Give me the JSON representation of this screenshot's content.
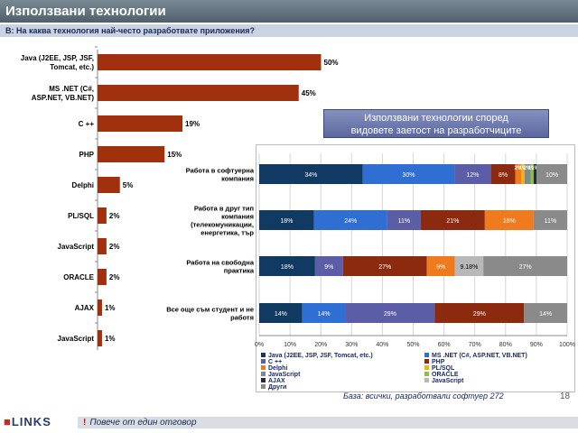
{
  "header": {
    "title": "Използвани технологии",
    "question": "В: На каква технология най-често разработвате приложения?"
  },
  "inset": {
    "title_line1": "Използвани технологии според",
    "title_line2": "видовете заетост на разработчиците"
  },
  "footer": {
    "base_note": "База: всички, разработвали софтуер 272",
    "note": "Повече от един отговор",
    "exclamation": "!",
    "page_number": "18",
    "logo": "LINKS"
  },
  "chart_data": [
    {
      "type": "bar",
      "orientation": "horizontal",
      "bar_color": "#a0300e",
      "categories": [
        [
          "Java (J2EE, JSP, JSF,",
          "Tomcat, etc.)"
        ],
        [
          "MS .NET (C#,",
          "ASP.NET, VB.NET)"
        ],
        [
          "C ++"
        ],
        [
          "PHP"
        ],
        [
          "Delphi"
        ],
        [
          "PL/SQL"
        ],
        [
          "JavaScript"
        ],
        [
          "ORACLE"
        ],
        [
          "AJAX"
        ],
        [
          "JavaScript"
        ]
      ],
      "values": [
        50,
        45,
        19,
        15,
        5,
        2,
        2,
        2,
        1,
        1
      ],
      "value_labels": [
        "50%",
        "45%",
        "19%",
        "15%",
        "5%",
        "2%",
        "2%",
        "2%",
        "1%",
        "1%"
      ]
    },
    {
      "type": "bar",
      "orientation": "horizontal",
      "stacked": true,
      "percent_stacked": true,
      "xlim": [
        0,
        100
      ],
      "xticks": [
        "0%",
        "10%",
        "20%",
        "30%",
        "40%",
        "50%",
        "60%",
        "70%",
        "80%",
        "90%",
        "100%"
      ],
      "categories": [
        [
          "Работа в софтуерна",
          "компания"
        ],
        [
          "Работа в друг тип",
          "компания",
          "(телекомуникации,",
          "енергетика, тър"
        ],
        [
          "Работа на свободна",
          "практика"
        ],
        [
          "Все още съм студент и не",
          "работя"
        ]
      ],
      "series": [
        {
          "name": "Java (J2EE, JSP, JSF, Tomcat, etc.)",
          "color": "#113a63",
          "values": [
            34,
            18,
            18,
            14
          ],
          "labels": [
            "34%",
            "18%",
            "18%",
            "14%"
          ]
        },
        {
          "name": "MS .NET (C#, ASP.NET, VB.NET)",
          "color": "#2f6fd4",
          "values": [
            30,
            24,
            0,
            14
          ],
          "labels": [
            "30%",
            "24%",
            "",
            "14%"
          ]
        },
        {
          "name": "C ++",
          "color": "#5b5ea6",
          "values": [
            12,
            11,
            9,
            29
          ],
          "labels": [
            "12%",
            "11%",
            "9%",
            "29%"
          ]
        },
        {
          "name": "PHP",
          "color": "#8b2a0e",
          "values": [
            8,
            21,
            27,
            29
          ],
          "labels": [
            "8%",
            "21%",
            "27%",
            "29%"
          ]
        },
        {
          "name": "Delphi",
          "color": "#f07a1e",
          "values": [
            2,
            16,
            9,
            0
          ],
          "labels": [
            "2%",
            "16%",
            "9%",
            ""
          ]
        },
        {
          "name": "PL/SQL",
          "color": "#f2b40a",
          "values": [
            1,
            0,
            0,
            0
          ],
          "labels": [
            "1%",
            "",
            "",
            ""
          ]
        },
        {
          "name": "JavaScript",
          "color": "#7b8a8f",
          "values": [
            2,
            0,
            0,
            0
          ],
          "labels": [
            "2%",
            "",
            "",
            ""
          ]
        },
        {
          "name": "ORACLE",
          "color": "#8fbf3f",
          "values": [
            1,
            0,
            0,
            0
          ],
          "labels": [
            "1%",
            "",
            "",
            ""
          ]
        },
        {
          "name": "AJAX",
          "color": "#1e2e3e",
          "values": [
            1,
            0,
            0,
            0
          ],
          "labels": [
            "1%",
            "",
            "",
            ""
          ]
        },
        {
          "name": "JavaScript",
          "color": "#b8b8b8",
          "values": [
            0,
            0,
            9.18,
            0
          ],
          "labels": [
            "",
            "",
            "9.18%",
            ""
          ]
        },
        {
          "name": "Други",
          "color": "#8a8a8a",
          "values": [
            10,
            11,
            27,
            14
          ],
          "labels": [
            "10%",
            "11%",
            "27%",
            "14%"
          ]
        }
      ],
      "legend_position": "bottom"
    }
  ]
}
